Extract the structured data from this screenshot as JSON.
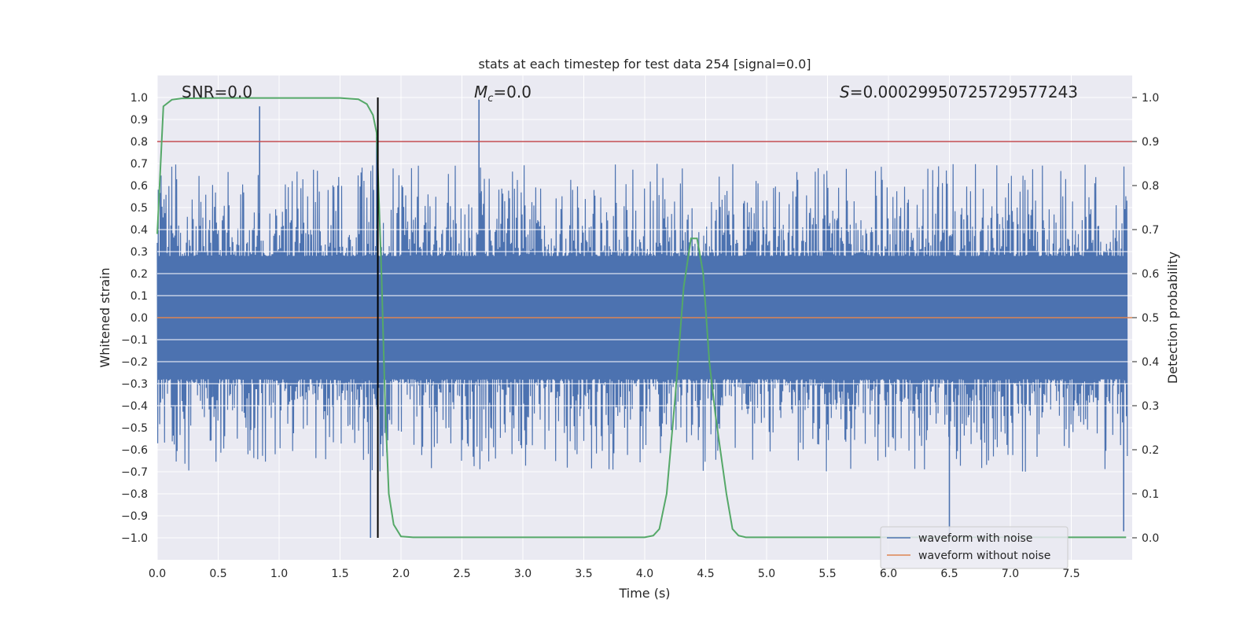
{
  "chart_data": {
    "type": "line",
    "title": "stats at each timestep for test data 254 [signal=0.0]",
    "xlabel": "Time (s)",
    "ylabel": "Whitened strain",
    "y2label": "Detection probability",
    "xlim": [
      0.0,
      8.0
    ],
    "ylim": [
      -1.1,
      1.1
    ],
    "y2lim": [
      -0.05,
      1.05
    ],
    "xticks": [
      "0.0",
      "0.5",
      "1.0",
      "1.5",
      "2.0",
      "2.5",
      "3.0",
      "3.5",
      "4.0",
      "4.5",
      "5.0",
      "5.5",
      "6.0",
      "6.5",
      "7.0",
      "7.5"
    ],
    "yticks": [
      "1.0",
      "0.9",
      "0.8",
      "0.7",
      "0.6",
      "0.5",
      "0.4",
      "0.3",
      "0.2",
      "0.1",
      "0.0",
      "-0.1",
      "-0.2",
      "-0.3",
      "-0.4",
      "-0.5",
      "-0.6",
      "-0.7",
      "-0.8",
      "-0.9",
      "-1.0"
    ],
    "y2ticks": [
      "1.0",
      "0.9",
      "0.8",
      "0.7",
      "0.6",
      "0.5",
      "0.4",
      "0.3",
      "0.2",
      "0.1",
      "0.0"
    ],
    "grid": true,
    "legend_position": "bottom-right",
    "annotations": {
      "snr": "SNR=0.0",
      "mc_symbol": "M",
      "mc_sub": "c",
      "mc_value": "=0.0",
      "s_symbol": "S",
      "s_value": "=0.00029950725729577243"
    },
    "series": [
      {
        "name": "waveform with noise",
        "axis": "left",
        "color": "#4c72b0",
        "description_level": "whitened noise between about -1.0 and 1.0",
        "notable_peaks": [
          [
            0.84,
            0.96
          ],
          [
            2.64,
            0.99
          ],
          [
            1.75,
            -1.0
          ],
          [
            1.8,
            0.82
          ],
          [
            6.5,
            -1.0
          ],
          [
            7.93,
            -0.97
          ]
        ]
      },
      {
        "name": "waveform without noise",
        "axis": "left",
        "color": "#dd8452",
        "x": [
          0.0,
          8.0
        ],
        "y": [
          0.0,
          0.0
        ]
      },
      {
        "axis": "right",
        "color": "#55a868",
        "x": [
          0.0,
          0.05,
          0.12,
          0.2,
          0.5,
          1.0,
          1.5,
          1.65,
          1.72,
          1.77,
          1.8,
          1.84,
          1.87,
          1.9,
          1.94,
          2.0,
          2.1,
          2.5,
          3.0,
          3.5,
          4.0,
          4.07,
          4.12,
          4.18,
          4.25,
          4.32,
          4.38,
          4.43,
          4.48,
          4.53,
          4.58,
          4.62,
          4.67,
          4.72,
          4.77,
          4.83,
          4.9,
          5.5,
          6.0,
          6.5,
          7.0,
          7.5,
          7.95
        ],
        "y": [
          0.69,
          0.98,
          0.995,
          0.998,
          0.999,
          0.999,
          0.999,
          0.996,
          0.985,
          0.96,
          0.92,
          0.6,
          0.3,
          0.1,
          0.03,
          0.003,
          0.001,
          0.001,
          0.001,
          0.001,
          0.001,
          0.005,
          0.02,
          0.1,
          0.32,
          0.57,
          0.68,
          0.68,
          0.6,
          0.4,
          0.28,
          0.2,
          0.1,
          0.02,
          0.005,
          0.001,
          0.001,
          0.001,
          0.001,
          0.001,
          0.001,
          0.001,
          0.001
        ]
      }
    ],
    "hlines": [
      {
        "axis": "left",
        "y": 0.8,
        "color": "#c44e52"
      }
    ],
    "vlines": [
      {
        "x": 1.81,
        "ymin": -1.0,
        "ymax": 1.0,
        "color": "#000000"
      }
    ]
  }
}
